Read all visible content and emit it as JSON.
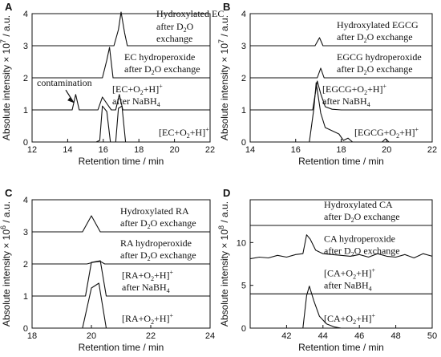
{
  "chart_data": [
    {
      "panel": "A",
      "type": "line",
      "xlabel": "Retention time / min",
      "ylabel": "Absolute intensity × 10",
      "ylabel_exp": "7",
      "ylabel_unit": " / a.u.",
      "xlim": [
        12,
        22
      ],
      "ylim": [
        0,
        4
      ],
      "xticks": [
        12,
        14,
        16,
        18,
        20,
        22
      ],
      "yticks": [
        0,
        1,
        2,
        3,
        4
      ],
      "series": [
        {
          "baseline": 3,
          "points": [
            [
              12,
              3
            ],
            [
              16.6,
              3
            ],
            [
              16.85,
              3.5
            ],
            [
              17.0,
              4.05
            ],
            [
              17.2,
              3.4
            ],
            [
              17.35,
              3
            ],
            [
              22,
              3
            ]
          ],
          "label": [
            "Hydroxylated EC",
            "after D",
            "2",
            "O",
            "exchange"
          ]
        },
        {
          "baseline": 2,
          "points": [
            [
              12,
              2
            ],
            [
              15.95,
              2
            ],
            [
              16.2,
              2.55
            ],
            [
              16.35,
              2.95
            ],
            [
              16.55,
              2
            ],
            [
              22,
              2
            ]
          ],
          "label": [
            "EC hydroperoxide",
            "after D",
            "2",
            "O exchange"
          ]
        },
        {
          "baseline": 1,
          "points": [
            [
              12,
              1
            ],
            [
              14.25,
              1
            ],
            [
              14.45,
              1.48
            ],
            [
              14.65,
              1
            ],
            [
              15.7,
              1
            ],
            [
              15.95,
              1.4
            ],
            [
              16.2,
              1.2
            ],
            [
              16.45,
              1
            ],
            [
              16.7,
              1
            ],
            [
              16.9,
              1.48
            ],
            [
              17.1,
              1
            ],
            [
              22,
              1
            ]
          ],
          "label": [
            "[EC+O",
            "2",
            "+H]",
            "+",
            "after NaBH",
            "4"
          ]
        },
        {
          "baseline": 0,
          "points": [
            [
              12,
              0
            ],
            [
              15.6,
              0
            ],
            [
              15.8,
              0.05
            ],
            [
              15.95,
              1.12
            ],
            [
              16.2,
              0.95
            ],
            [
              16.4,
              0
            ],
            [
              16.7,
              0
            ],
            [
              16.85,
              1.05
            ],
            [
              17.05,
              1.12
            ],
            [
              17.25,
              0
            ],
            [
              22,
              0
            ]
          ],
          "label": [
            "[EC+O",
            "2",
            "+H]",
            "+"
          ]
        }
      ],
      "annotation": "contamination"
    },
    {
      "panel": "B",
      "type": "line",
      "xlabel": "Retention time / min",
      "ylabel": "Absolute intensity × 10",
      "ylabel_exp": "7",
      "ylabel_unit": " / a.u.",
      "xlim": [
        14,
        22
      ],
      "ylim": [
        0,
        4
      ],
      "xticks": [
        14,
        16,
        18,
        20,
        22
      ],
      "yticks": [
        0,
        1,
        2,
        3,
        4
      ],
      "series": [
        {
          "baseline": 3,
          "points": [
            [
              14,
              3
            ],
            [
              16.85,
              3
            ],
            [
              17.05,
              3.25
            ],
            [
              17.2,
              3
            ],
            [
              22,
              3
            ]
          ],
          "label": [
            "Hydroxylated EGCG",
            "after D",
            "2",
            "O exchange"
          ]
        },
        {
          "baseline": 2,
          "points": [
            [
              14,
              2
            ],
            [
              16.95,
              2
            ],
            [
              17.1,
              2.3
            ],
            [
              17.25,
              2
            ],
            [
              22,
              2
            ]
          ],
          "label": [
            "EGCG hydroperoxide",
            "after D",
            "2",
            "O exchange"
          ]
        },
        {
          "baseline": 1,
          "points": [
            [
              14,
              1
            ],
            [
              16.75,
              1
            ],
            [
              16.95,
              1.9
            ],
            [
              17.1,
              1.5
            ],
            [
              17.3,
              1.1
            ],
            [
              17.6,
              1.02
            ],
            [
              18,
              1
            ],
            [
              22,
              1
            ]
          ],
          "label": [
            "[EGCG+O",
            "2",
            "+H]",
            "+",
            "after NaBH",
            "4"
          ]
        },
        {
          "baseline": 0,
          "points": [
            [
              14,
              0
            ],
            [
              16.6,
              0
            ],
            [
              16.8,
              1.05
            ],
            [
              16.9,
              1.85
            ],
            [
              17.1,
              0.9
            ],
            [
              17.3,
              0.45
            ],
            [
              17.6,
              0.35
            ],
            [
              17.9,
              0.25
            ],
            [
              18.1,
              0.05
            ],
            [
              18.3,
              0.12
            ],
            [
              18.5,
              0
            ],
            [
              19.8,
              0
            ],
            [
              19.95,
              0.1
            ],
            [
              20.1,
              0
            ],
            [
              22,
              0
            ]
          ],
          "label": [
            "[EGCG+O",
            "2",
            "+H]",
            "+"
          ]
        }
      ]
    },
    {
      "panel": "C",
      "type": "line",
      "xlabel": "Retention time / min",
      "ylabel": "Absolute intensity × 10",
      "ylabel_exp": "6",
      "ylabel_unit": " / a.u.",
      "xlim": [
        18,
        24
      ],
      "ylim": [
        0,
        4
      ],
      "xticks": [
        18,
        20,
        22,
        24
      ],
      "yticks": [
        0,
        1,
        2,
        3,
        4
      ],
      "series": [
        {
          "baseline": 3,
          "points": [
            [
              18,
              3
            ],
            [
              19.7,
              3
            ],
            [
              20,
              3.5
            ],
            [
              20.3,
              3
            ],
            [
              24,
              3
            ]
          ],
          "label": [
            "Hydroxylated RA",
            "after D",
            "2",
            "O exchange"
          ]
        },
        {
          "baseline": 2,
          "points": [
            [
              18,
              2
            ],
            [
              19.85,
              2
            ],
            [
              20.05,
              2.05
            ],
            [
              20.3,
              2.08
            ],
            [
              20.45,
              2
            ],
            [
              24,
              2
            ]
          ],
          "label": [
            "RA hydroperoxide",
            "after D",
            "2",
            "O exchange"
          ]
        },
        {
          "baseline": 1,
          "points": [
            [
              18,
              1
            ],
            [
              19.8,
              1
            ],
            [
              20,
              2.05
            ],
            [
              20.3,
              2.1
            ],
            [
              20.5,
              1
            ],
            [
              24,
              1
            ]
          ],
          "label": [
            "[RA+O",
            "2",
            "+H]",
            "+",
            "after NaBH",
            "4"
          ]
        },
        {
          "baseline": 0,
          "points": [
            [
              18,
              0
            ],
            [
              19.7,
              0
            ],
            [
              20,
              1.25
            ],
            [
              20.25,
              1.4
            ],
            [
              20.5,
              0
            ],
            [
              24,
              0
            ]
          ],
          "label": [
            "[RA+O",
            "2",
            "+H]",
            "+"
          ]
        }
      ]
    },
    {
      "panel": "D",
      "type": "line",
      "xlabel": "Retention time / min",
      "ylabel": "Absolute intensity × 10",
      "ylabel_exp": "8",
      "ylabel_unit": " / a.u.",
      "xlim": [
        40,
        50
      ],
      "ylim": [
        0,
        15
      ],
      "xticks": [
        42,
        44,
        46,
        48,
        50
      ],
      "yticks": [
        0,
        5,
        10
      ],
      "series": [
        {
          "baseline": 12,
          "points": [
            [
              40,
              12
            ],
            [
              50,
              12
            ]
          ],
          "label": [
            "Hydroxylated CA",
            "after D",
            "2",
            "O exchange"
          ]
        },
        {
          "baseline": 8,
          "points": [
            [
              40,
              8.1
            ],
            [
              40.5,
              8.3
            ],
            [
              41,
              8.2
            ],
            [
              41.5,
              8.5
            ],
            [
              42,
              8.3
            ],
            [
              42.5,
              8.6
            ],
            [
              42.9,
              8.7
            ],
            [
              43.1,
              10.9
            ],
            [
              43.3,
              10.4
            ],
            [
              43.6,
              9.1
            ],
            [
              44,
              8.7
            ],
            [
              44.5,
              8.6
            ],
            [
              45,
              8.5
            ],
            [
              45.5,
              8.4
            ],
            [
              46,
              8.6
            ],
            [
              46.5,
              8.3
            ],
            [
              47,
              8.7
            ],
            [
              47.5,
              8.4
            ],
            [
              48,
              8.3
            ],
            [
              48.5,
              8.6
            ],
            [
              49,
              8.2
            ],
            [
              49.5,
              8.7
            ],
            [
              50,
              8.4
            ]
          ],
          "label": [
            "CA hydroperoxide",
            "after D",
            "2",
            "O exchange"
          ]
        },
        {
          "baseline": 4,
          "points": [
            [
              40,
              4
            ],
            [
              50,
              4
            ]
          ],
          "label": [
            "[CA+O",
            "2",
            "+H]",
            "+",
            "after NaBH",
            "4"
          ]
        },
        {
          "baseline": 0,
          "points": [
            [
              40,
              0
            ],
            [
              42.9,
              0
            ],
            [
              43.1,
              3.8
            ],
            [
              43.25,
              4.9
            ],
            [
              43.5,
              3.2
            ],
            [
              43.8,
              1.4
            ],
            [
              44.2,
              0.5
            ],
            [
              44.6,
              0.15
            ],
            [
              45,
              0
            ],
            [
              50,
              0
            ]
          ],
          "label": [
            "[CA+O",
            "2",
            "+H]",
            "+"
          ]
        }
      ]
    }
  ]
}
